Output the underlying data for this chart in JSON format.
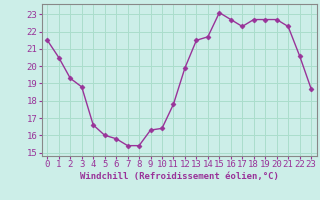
{
  "x": [
    0,
    1,
    2,
    3,
    4,
    5,
    6,
    7,
    8,
    9,
    10,
    11,
    12,
    13,
    14,
    15,
    16,
    17,
    18,
    19,
    20,
    21,
    22,
    23
  ],
  "y": [
    21.5,
    20.5,
    19.3,
    18.8,
    16.6,
    16.0,
    15.8,
    15.4,
    15.4,
    16.3,
    16.4,
    17.8,
    19.9,
    21.5,
    21.7,
    23.1,
    22.7,
    22.3,
    22.7,
    22.7,
    22.7,
    22.3,
    20.6,
    18.7
  ],
  "line_color": "#993399",
  "marker": "D",
  "markersize": 2.5,
  "linewidth": 1.0,
  "background_color": "#cceee8",
  "grid_color": "#aaddcc",
  "xlabel": "Windchill (Refroidissement éolien,°C)",
  "xlim": [
    -0.5,
    23.5
  ],
  "ylim": [
    14.8,
    23.6
  ],
  "yticks": [
    15,
    16,
    17,
    18,
    19,
    20,
    21,
    22,
    23
  ],
  "xticks": [
    0,
    1,
    2,
    3,
    4,
    5,
    6,
    7,
    8,
    9,
    10,
    11,
    12,
    13,
    14,
    15,
    16,
    17,
    18,
    19,
    20,
    21,
    22,
    23
  ],
  "xlabel_fontsize": 6.5,
  "tick_fontsize": 6.5,
  "xlabel_color": "#993399",
  "tick_color": "#993399",
  "axis_color": "#993399",
  "spine_color": "#888888"
}
